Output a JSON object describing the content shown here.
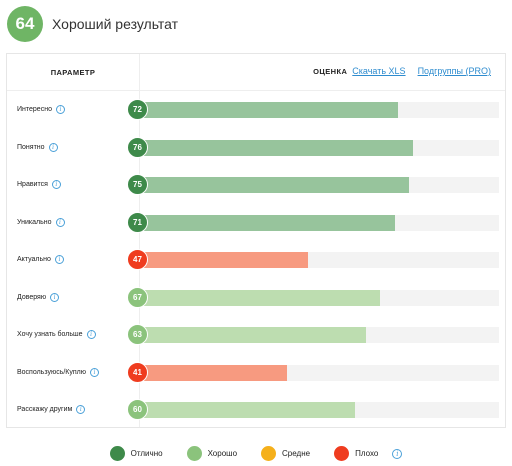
{
  "summary": {
    "score": "64",
    "title": "Хороший результат",
    "color": "#6fb565"
  },
  "table": {
    "param_header": "ПАРАМЕТР",
    "score_header": "ОЦЕНКА",
    "download_link": "Скачать XLS",
    "subgroups_link": "Подгруппы (PRO)",
    "max_value": 100,
    "rows": [
      {
        "label": "Интересно",
        "value": "72",
        "level": "excellent"
      },
      {
        "label": "Понятно",
        "value": "76",
        "level": "excellent"
      },
      {
        "label": "Нравится",
        "value": "75",
        "level": "excellent"
      },
      {
        "label": "Уникально",
        "value": "71",
        "level": "excellent"
      },
      {
        "label": "Актуально",
        "value": "47",
        "level": "bad"
      },
      {
        "label": "Доверяю",
        "value": "67",
        "level": "good"
      },
      {
        "label": "Хочу узнать больше",
        "value": "63",
        "level": "good"
      },
      {
        "label": "Воспользуюсь/Куплю",
        "value": "41",
        "level": "bad"
      },
      {
        "label": "Расскажу другим",
        "value": "60",
        "level": "good"
      }
    ]
  },
  "levels": {
    "excellent": {
      "badge": "#3e8a4a",
      "bar": "#97c49c"
    },
    "good": {
      "badge": "#8bc37c",
      "bar": "#bdddb0"
    },
    "medium": {
      "badge": "#f5b01b",
      "bar": "#f8d389"
    },
    "bad": {
      "badge": "#ef3c1f",
      "bar": "#f79a80"
    }
  },
  "legend": [
    {
      "label": "Отлично",
      "color": "#3e8a4a"
    },
    {
      "label": "Хорошо",
      "color": "#8bc37c"
    },
    {
      "label": "Средне",
      "color": "#f5b01b"
    },
    {
      "label": "Плохо",
      "color": "#ef3c1f"
    }
  ],
  "icons": {
    "info": "i",
    "info_icon_name": "info-icon"
  }
}
